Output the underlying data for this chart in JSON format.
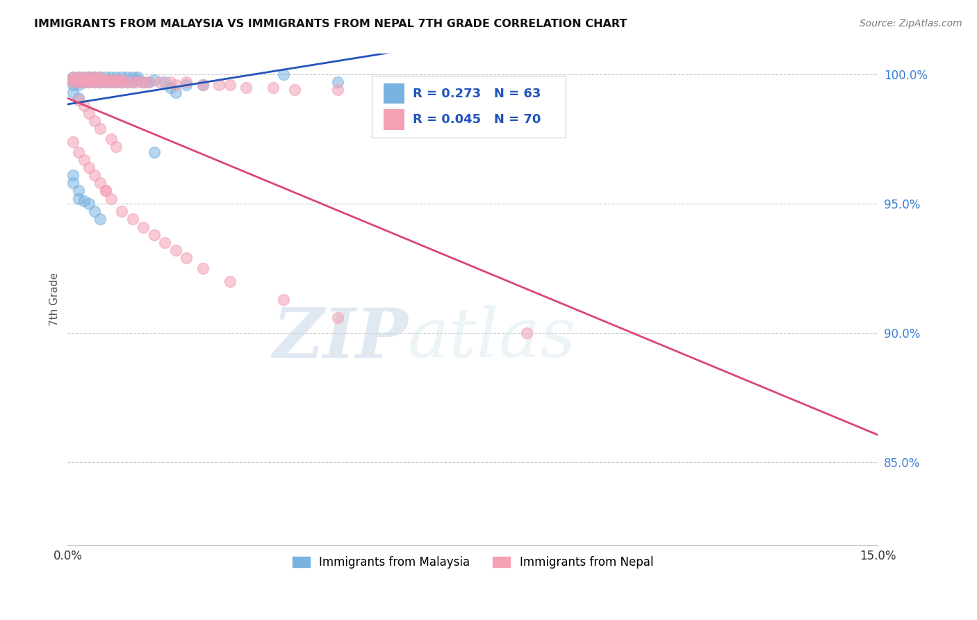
{
  "title": "IMMIGRANTS FROM MALAYSIA VS IMMIGRANTS FROM NEPAL 7TH GRADE CORRELATION CHART",
  "source": "Source: ZipAtlas.com",
  "ylabel": "7th Grade",
  "ylabel_right_ticks": [
    "100.0%",
    "95.0%",
    "90.0%",
    "85.0%"
  ],
  "ylabel_right_vals": [
    1.0,
    0.95,
    0.9,
    0.85
  ],
  "xlim": [
    0.0,
    0.15
  ],
  "ylim": [
    0.818,
    1.008
  ],
  "legend_malaysia": "Immigrants from Malaysia",
  "legend_nepal": "Immigrants from Nepal",
  "R_malaysia": 0.273,
  "N_malaysia": 63,
  "R_nepal": 0.045,
  "N_nepal": 70,
  "color_malaysia": "#7ab3e0",
  "color_nepal": "#f4a0b5",
  "trendline_malaysia": "#2255bb",
  "trendline_nepal": "#dd4477",
  "malaysia_x": [
    0.001,
    0.001,
    0.001,
    0.001,
    0.002,
    0.002,
    0.002,
    0.002,
    0.002,
    0.003,
    0.003,
    0.003,
    0.003,
    0.003,
    0.004,
    0.004,
    0.004,
    0.004,
    0.005,
    0.005,
    0.005,
    0.005,
    0.006,
    0.006,
    0.006,
    0.006,
    0.007,
    0.007,
    0.007,
    0.008,
    0.008,
    0.008,
    0.009,
    0.009,
    0.01,
    0.01,
    0.011,
    0.011,
    0.012,
    0.012,
    0.013,
    0.013,
    0.014,
    0.015,
    0.016,
    0.018,
    0.019,
    0.02,
    0.022,
    0.025,
    0.001,
    0.001,
    0.002,
    0.002,
    0.003,
    0.004,
    0.005,
    0.006,
    0.016,
    0.04,
    0.05,
    0.001,
    0.002
  ],
  "malaysia_y": [
    0.999,
    0.998,
    0.997,
    0.996,
    0.999,
    0.998,
    0.998,
    0.997,
    0.996,
    0.999,
    0.998,
    0.998,
    0.997,
    0.997,
    0.999,
    0.999,
    0.998,
    0.997,
    0.999,
    0.999,
    0.998,
    0.997,
    0.999,
    0.998,
    0.997,
    0.997,
    0.999,
    0.998,
    0.997,
    0.999,
    0.998,
    0.997,
    0.999,
    0.997,
    0.999,
    0.997,
    0.999,
    0.997,
    0.999,
    0.997,
    0.999,
    0.998,
    0.997,
    0.997,
    0.998,
    0.997,
    0.995,
    0.993,
    0.996,
    0.996,
    0.961,
    0.958,
    0.955,
    0.952,
    0.951,
    0.95,
    0.947,
    0.944,
    0.97,
    1.0,
    0.997,
    0.993,
    0.991
  ],
  "nepal_x": [
    0.001,
    0.001,
    0.001,
    0.002,
    0.002,
    0.002,
    0.003,
    0.003,
    0.003,
    0.004,
    0.004,
    0.004,
    0.005,
    0.005,
    0.005,
    0.006,
    0.006,
    0.006,
    0.007,
    0.007,
    0.008,
    0.008,
    0.009,
    0.009,
    0.01,
    0.01,
    0.011,
    0.012,
    0.013,
    0.014,
    0.015,
    0.017,
    0.019,
    0.02,
    0.022,
    0.025,
    0.028,
    0.03,
    0.033,
    0.038,
    0.042,
    0.05,
    0.001,
    0.002,
    0.003,
    0.004,
    0.005,
    0.006,
    0.007,
    0.008,
    0.01,
    0.012,
    0.014,
    0.016,
    0.018,
    0.02,
    0.022,
    0.025,
    0.03,
    0.04,
    0.05,
    0.002,
    0.003,
    0.004,
    0.005,
    0.006,
    0.008,
    0.009,
    0.085,
    0.007
  ],
  "nepal_y": [
    0.999,
    0.998,
    0.997,
    0.999,
    0.998,
    0.997,
    0.999,
    0.998,
    0.997,
    0.999,
    0.998,
    0.997,
    0.999,
    0.998,
    0.997,
    0.999,
    0.998,
    0.997,
    0.998,
    0.997,
    0.998,
    0.997,
    0.998,
    0.997,
    0.998,
    0.997,
    0.997,
    0.997,
    0.997,
    0.997,
    0.997,
    0.997,
    0.997,
    0.996,
    0.997,
    0.996,
    0.996,
    0.996,
    0.995,
    0.995,
    0.994,
    0.994,
    0.974,
    0.97,
    0.967,
    0.964,
    0.961,
    0.958,
    0.955,
    0.952,
    0.947,
    0.944,
    0.941,
    0.938,
    0.935,
    0.932,
    0.929,
    0.925,
    0.92,
    0.913,
    0.906,
    0.99,
    0.988,
    0.985,
    0.982,
    0.979,
    0.975,
    0.972,
    0.9,
    0.955
  ],
  "watermark_zip": "ZIP",
  "watermark_atlas": "atlas",
  "background_color": "#ffffff",
  "grid_color": "#bbbbbb"
}
